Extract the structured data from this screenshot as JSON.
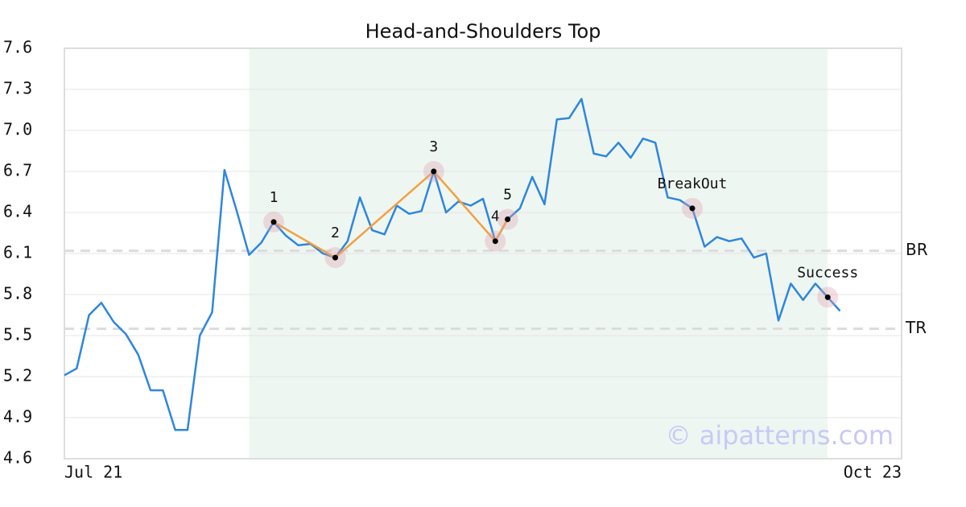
{
  "chart_data": {
    "type": "line",
    "title": "Head-and-Shoulders Top",
    "x": [
      0,
      1,
      2,
      3,
      4,
      5,
      6,
      7,
      8,
      9,
      10,
      11,
      12,
      13,
      14,
      15,
      16,
      17,
      18,
      19,
      20,
      21,
      22,
      23,
      24,
      25,
      26,
      27,
      28,
      29,
      30,
      31,
      32,
      33,
      34,
      35,
      36,
      37,
      38,
      39,
      40,
      41,
      42,
      43,
      44,
      45,
      46,
      47,
      48,
      49,
      50,
      51,
      52,
      53,
      54,
      55,
      56,
      57,
      58,
      59,
      60,
      61,
      62,
      63
    ],
    "values": [
      5.21,
      5.26,
      5.65,
      5.74,
      5.6,
      5.51,
      5.36,
      5.1,
      5.1,
      4.81,
      4.81,
      5.5,
      5.67,
      6.71,
      6.41,
      6.09,
      6.18,
      6.33,
      6.23,
      6.16,
      6.17,
      6.1,
      6.07,
      6.19,
      6.51,
      6.27,
      6.24,
      6.45,
      6.39,
      6.41,
      6.7,
      6.4,
      6.48,
      6.45,
      6.5,
      6.19,
      6.35,
      6.43,
      6.66,
      6.46,
      7.08,
      7.09,
      7.23,
      6.83,
      6.81,
      6.91,
      6.8,
      6.94,
      6.91,
      6.51,
      6.49,
      6.43,
      6.15,
      6.22,
      6.19,
      6.21,
      6.07,
      6.1,
      5.61,
      5.88,
      5.76,
      5.88,
      5.78,
      5.68
    ],
    "color": "#2e86de",
    "xlim": [
      0,
      68
    ],
    "xticks": [
      {
        "value": 0,
        "label": "Jul 21"
      },
      {
        "value": 68,
        "label": "Oct 23"
      }
    ],
    "ylim": [
      4.6,
      7.6
    ],
    "yticks": [
      4.6,
      4.9,
      5.2,
      5.5,
      5.8,
      6.1,
      6.4,
      6.7,
      {
        "value": 7,
        "label": "7.0"
      },
      7.3,
      7.6
    ],
    "grid": true,
    "highlight_range": [
      15,
      62
    ],
    "highlight_color": "#eef6f2",
    "pattern_color": "#f4a040",
    "pattern_points": [
      {
        "label": "1",
        "x": 17,
        "y": 6.33
      },
      {
        "label": "2",
        "x": 22,
        "y": 6.07
      },
      {
        "label": "3",
        "x": 30,
        "y": 6.7
      },
      {
        "label": "4",
        "x": 35,
        "y": 6.19
      },
      {
        "label": "5",
        "x": 36,
        "y": 6.35
      }
    ],
    "signals": [
      {
        "label": "BreakOut",
        "x": 51,
        "y": 6.43
      },
      {
        "label": "Success",
        "x": 62,
        "y": 5.78
      }
    ],
    "reference_lines": [
      {
        "label": "BR",
        "value": 6.12
      },
      {
        "label": "TR",
        "value": 5.55
      }
    ],
    "watermark": "© aipatterns.com"
  }
}
